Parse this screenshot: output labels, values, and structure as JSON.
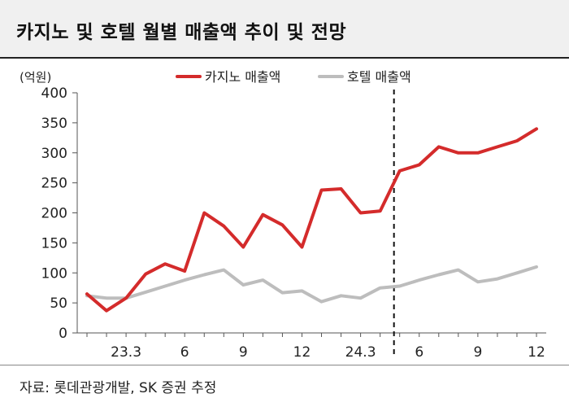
{
  "title": "카지노 및 호텔 월별 매출액 추이 및 전망",
  "source": "자료: 롯데관광개발, SK 증권 추정",
  "chart_data": {
    "type": "line",
    "unit_label": "(억원)",
    "y_ticks": [
      0,
      50,
      100,
      150,
      200,
      250,
      300,
      350,
      400
    ],
    "ylim": [
      0,
      400
    ],
    "x_tick_labels": [
      "23.3",
      "6",
      "9",
      "12",
      "24.3",
      "6",
      "9",
      "12"
    ],
    "x_tick_indices": [
      2,
      5,
      8,
      11,
      14,
      17,
      20,
      23
    ],
    "forecast_divider_after_index": 16,
    "legend_position": "top",
    "series": [
      {
        "name": "카지노 매출액",
        "color": "#d42b2b",
        "values": [
          65,
          37,
          58,
          98,
          115,
          103,
          200,
          178,
          143,
          197,
          180,
          143,
          238,
          240,
          200,
          203,
          270,
          280,
          310,
          300,
          300,
          310,
          320,
          340
        ]
      },
      {
        "name": "호텔 매출액",
        "color": "#bdbdbd",
        "values": [
          62,
          58,
          58,
          68,
          78,
          88,
          97,
          105,
          80,
          88,
          67,
          70,
          52,
          62,
          58,
          75,
          78,
          88,
          97,
          105,
          85,
          90,
          100,
          110
        ]
      }
    ]
  }
}
